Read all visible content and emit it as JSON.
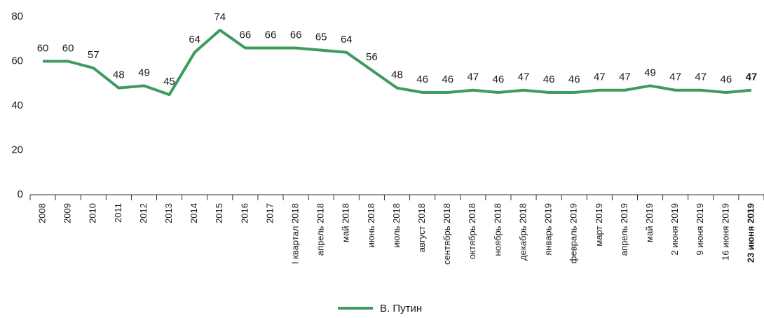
{
  "chart_data": {
    "type": "line",
    "categories": [
      "2008",
      "2009",
      "2010",
      "2011",
      "2012",
      "2013",
      "2014",
      "2015",
      "2016",
      "2017",
      "I квартал 2018",
      "апрель 2018",
      "май 2018",
      "июнь 2018",
      "июль 2018",
      "август 2018",
      "сентябрь 2018",
      "октябрь 2018",
      "ноябрь 2018",
      "декабрь 2018",
      "январь 2019",
      "февраль 2019",
      "март 2019",
      "апрель 2019",
      "май 2019",
      "2 июня 2019",
      "9 июня 2019",
      "16 июня 2019",
      "23 июня 2019"
    ],
    "series": [
      {
        "name": "В. Путин",
        "color": "#3d9b5e",
        "values": [
          60,
          60,
          57,
          48,
          49,
          45,
          64,
          74,
          66,
          66,
          66,
          65,
          64,
          56,
          48,
          46,
          46,
          47,
          46,
          47,
          46,
          46,
          47,
          47,
          49,
          47,
          47,
          46,
          47
        ]
      }
    ],
    "ylim": [
      0,
      80
    ],
    "yticks": [
      0,
      20,
      40,
      60,
      80
    ],
    "grid": false
  }
}
